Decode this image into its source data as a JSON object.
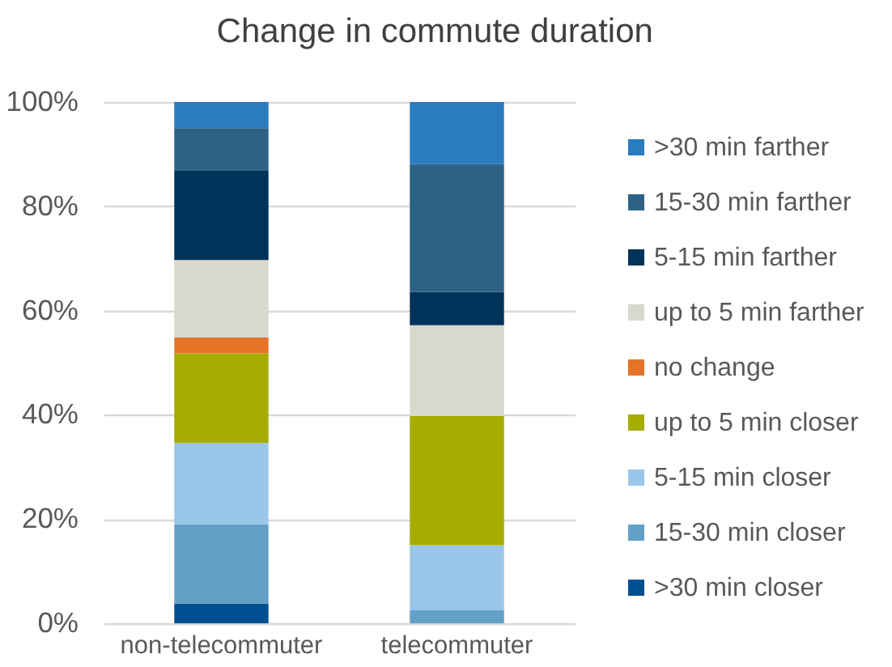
{
  "chart_data": {
    "type": "bar",
    "title": "Change in commute duration",
    "categories": [
      "non-telecommuter",
      "telecommuter"
    ],
    "stacked": true,
    "series": [
      {
        "name": ">30 min closer",
        "color": "#004f91",
        "values": [
          3.8,
          0
        ]
      },
      {
        "name": "15-30 min closer",
        "color": "#63a0c8",
        "values": [
          15.2,
          2.5
        ]
      },
      {
        "name": "5-15 min closer",
        "color": "#9ac6e9",
        "values": [
          15.6,
          12.5
        ]
      },
      {
        "name": "up to 5 min closer",
        "color": "#a5ad00",
        "values": [
          17.2,
          24.8
        ]
      },
      {
        "name": "no change",
        "color": "#e57428",
        "values": [
          3.0,
          0
        ]
      },
      {
        "name": "up to 5 min farther",
        "color": "#d9d8cc",
        "values": [
          14.9,
          17.4
        ]
      },
      {
        "name": "5-15 min farther",
        "color": "#003359",
        "values": [
          17.2,
          6.4
        ]
      },
      {
        "name": "15-30 min farther",
        "color": "#2e6285",
        "values": [
          8.1,
          24.5
        ]
      },
      {
        "name": ">30 min farther",
        "color": "#2a7bc0",
        "values": [
          5.0,
          11.9
        ]
      }
    ],
    "ylim": [
      0,
      100
    ],
    "yticks": [
      {
        "value": 0,
        "label": "0%"
      },
      {
        "value": 20,
        "label": "20%"
      },
      {
        "value": 40,
        "label": "40%"
      },
      {
        "value": 60,
        "label": "60%"
      },
      {
        "value": 80,
        "label": "80%"
      },
      {
        "value": 100,
        "label": "100%"
      }
    ],
    "grid": "y",
    "legend": "right"
  }
}
